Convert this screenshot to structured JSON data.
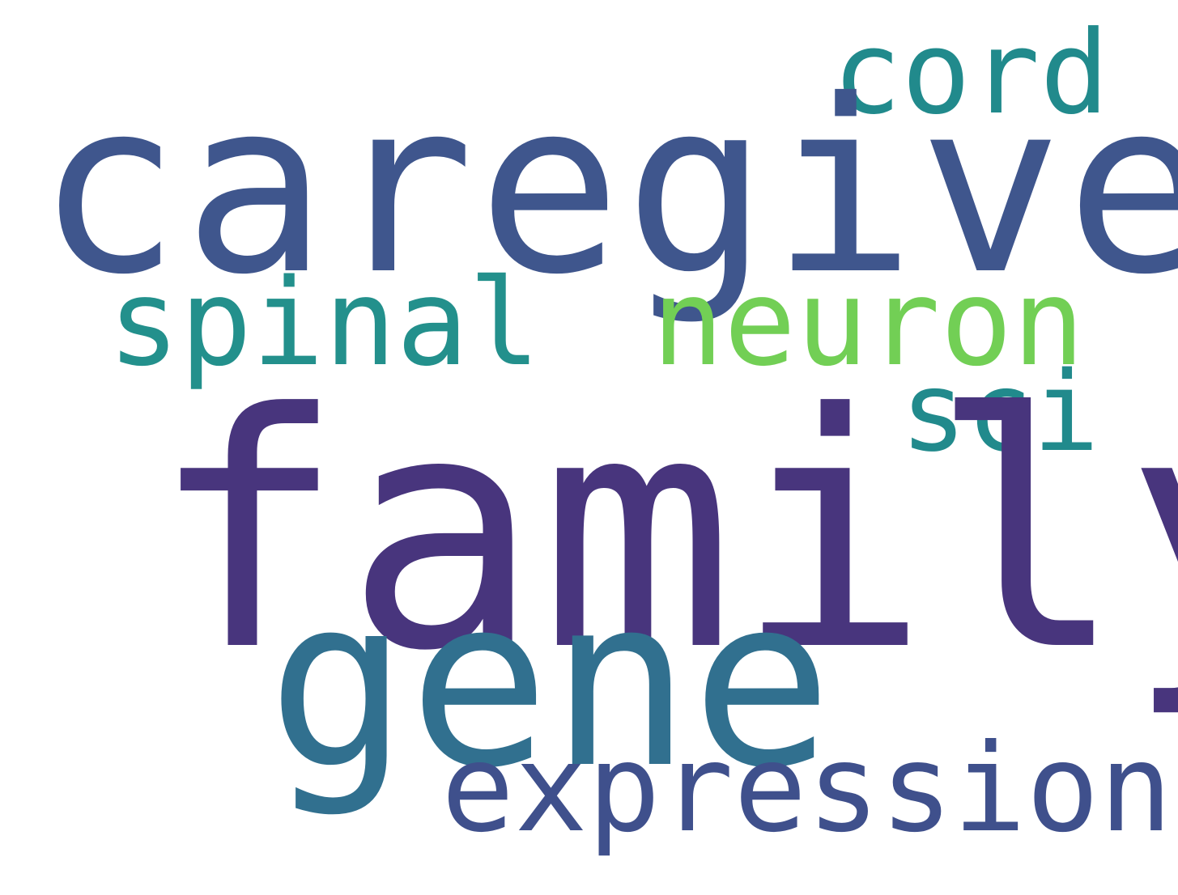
{
  "words": {
    "caregiver": {
      "text": "caregiver",
      "color": "#3F568D"
    },
    "cord": {
      "text": "cord",
      "color": "#218A8C"
    },
    "spinal": {
      "text": "spinal",
      "color": "#23908C"
    },
    "neuron": {
      "text": "neuron",
      "color": "#72CF55"
    },
    "sci": {
      "text": "sci",
      "color": "#218A8C"
    },
    "family": {
      "text": "family",
      "color": "#48357D"
    },
    "gene": {
      "text": "gene",
      "color": "#31708F"
    },
    "expression": {
      "text": "expression",
      "color": "#3F508C"
    }
  }
}
